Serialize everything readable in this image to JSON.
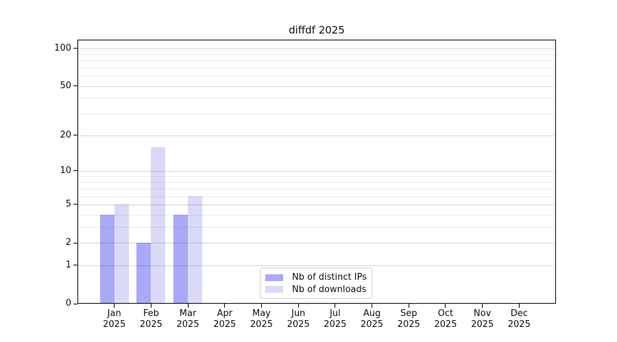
{
  "title": "diffdf 2025",
  "legend": {
    "items": [
      {
        "label": "Nb of distinct IPs",
        "color": "#a9a9f8"
      },
      {
        "label": "Nb of downloads",
        "color": "#dadaf8"
      }
    ]
  },
  "chart_data": {
    "type": "bar",
    "title": "diffdf 2025",
    "categories": [
      "Jan 2025",
      "Feb 2025",
      "Mar 2025",
      "Apr 2025",
      "May 2025",
      "Jun 2025",
      "Jul 2025",
      "Aug 2025",
      "Sep 2025",
      "Oct 2025",
      "Nov 2025",
      "Dec 2025"
    ],
    "x_tick_months": [
      "Jan",
      "Feb",
      "Mar",
      "Apr",
      "May",
      "Jun",
      "Jul",
      "Aug",
      "Sep",
      "Oct",
      "Nov",
      "Dec"
    ],
    "x_tick_year": "2025",
    "series": [
      {
        "name": "Nb of distinct IPs",
        "color": "#a9a9f8",
        "values": [
          4,
          2,
          4,
          0,
          0,
          0,
          0,
          0,
          0,
          0,
          0,
          0
        ]
      },
      {
        "name": "Nb of downloads",
        "color": "#dadaf8",
        "values": [
          5,
          16,
          6,
          0,
          0,
          0,
          0,
          0,
          0,
          0,
          0,
          0
        ]
      }
    ],
    "y_scale": "log1p (symlog-like: 0,1,2,5,10,20,50,100)",
    "y_major_ticks": [
      0,
      1,
      2,
      5,
      10,
      20,
      50,
      100
    ],
    "y_minor_ticks": [
      3,
      4,
      6,
      7,
      8,
      9,
      30,
      40,
      60,
      70,
      80,
      90
    ],
    "ylim": [
      0,
      117
    ],
    "xlabel": "",
    "ylabel": "",
    "grid": "horizontal, major and minor",
    "legend_position": "inside, lower center"
  }
}
